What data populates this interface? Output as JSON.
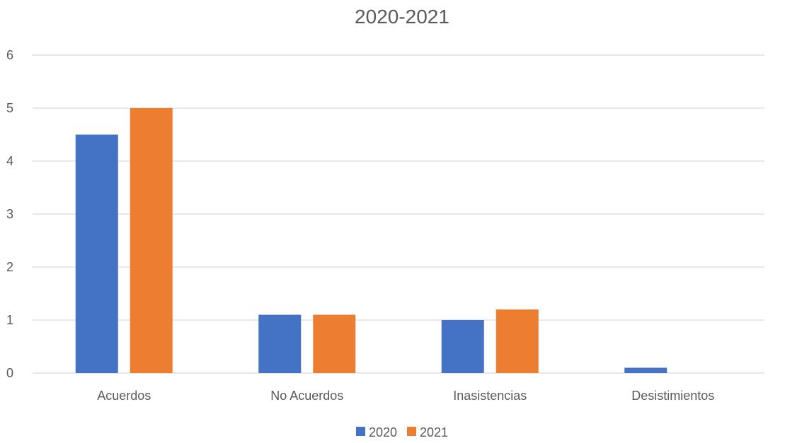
{
  "chart_data": {
    "type": "bar",
    "title": "2020-2021",
    "categories": [
      "Acuerdos",
      "No Acuerdos",
      "Inasistencias",
      "Desistimientos"
    ],
    "series": [
      {
        "name": "2020",
        "values": [
          4.5,
          1.1,
          1.0,
          0.1
        ],
        "color": "#4472C4"
      },
      {
        "name": "2021",
        "values": [
          5.0,
          1.1,
          1.2,
          0.0
        ],
        "color": "#ED7D31"
      }
    ],
    "ylim": [
      0,
      6
    ],
    "yticks": [
      0,
      1,
      2,
      3,
      4,
      5,
      6
    ],
    "grid": true,
    "legend_position": "bottom"
  }
}
